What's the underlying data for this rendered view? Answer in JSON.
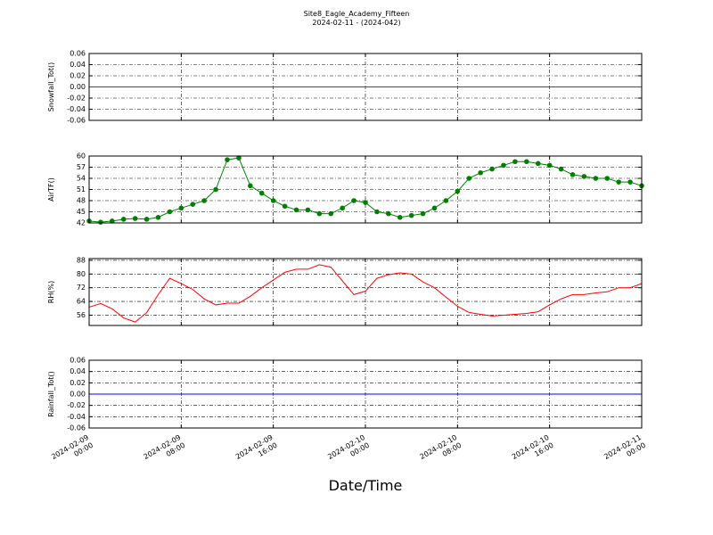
{
  "chart_data": [
    {
      "type": "line",
      "title": "Site8_Eagle_Academy_Fifteen",
      "subtitle": "2024-02-11 - (2024-042)",
      "ylabel": "Snowfall_Tot()",
      "x": [
        "2024-02-09 00:00",
        "2024-02-11 00:00"
      ],
      "values": [
        0,
        0
      ],
      "color": "#ff0000",
      "xlim": [
        "2024-02-09 00:00",
        "2024-02-11 00:00"
      ],
      "ylim": [
        -0.06,
        0.06
      ],
      "yticks": [
        -0.06,
        -0.04,
        -0.02,
        {
          "value": 0,
          "label": "0.00"
        },
        0.02,
        0.04,
        0.06
      ],
      "grid": true
    },
    {
      "type": "line",
      "ylabel": "AirTF()",
      "marker": "o",
      "color": "#008000",
      "x": [
        "2024-02-09 00:00",
        "2024-02-09 01:00",
        "2024-02-09 02:00",
        "2024-02-09 03:00",
        "2024-02-09 04:00",
        "2024-02-09 05:00",
        "2024-02-09 06:00",
        "2024-02-09 07:00",
        "2024-02-09 08:00",
        "2024-02-09 09:00",
        "2024-02-09 10:00",
        "2024-02-09 11:00",
        "2024-02-09 12:00",
        "2024-02-09 13:00",
        "2024-02-09 14:00",
        "2024-02-09 15:00",
        "2024-02-09 16:00",
        "2024-02-09 17:00",
        "2024-02-09 18:00",
        "2024-02-09 19:00",
        "2024-02-09 20:00",
        "2024-02-09 21:00",
        "2024-02-09 22:00",
        "2024-02-09 23:00",
        "2024-02-10 00:00",
        "2024-02-10 01:00",
        "2024-02-10 02:00",
        "2024-02-10 03:00",
        "2024-02-10 04:00",
        "2024-02-10 05:00",
        "2024-02-10 06:00",
        "2024-02-10 07:00",
        "2024-02-10 08:00",
        "2024-02-10 09:00",
        "2024-02-10 10:00",
        "2024-02-10 11:00",
        "2024-02-10 12:00",
        "2024-02-10 13:00",
        "2024-02-10 14:00",
        "2024-02-10 15:00",
        "2024-02-10 16:00",
        "2024-02-10 17:00",
        "2024-02-10 18:00",
        "2024-02-10 19:00",
        "2024-02-10 20:00",
        "2024-02-10 21:00",
        "2024-02-10 22:00",
        "2024-02-10 23:00",
        "2024-02-11 00:00"
      ],
      "values": [
        42.5,
        42.2,
        42.5,
        43,
        43.2,
        43,
        43.5,
        45,
        46,
        47,
        48,
        51,
        59,
        59.5,
        52,
        50,
        48,
        46.5,
        45.5,
        45.5,
        44.5,
        44.5,
        46,
        48,
        47.5,
        45,
        44.5,
        43.5,
        44,
        44.5,
        46,
        48,
        50.5,
        54,
        55.5,
        56.5,
        57.5,
        58.5,
        58.5,
        58,
        57.5,
        56.5,
        55,
        54.5,
        54,
        54,
        53,
        53,
        52
      ],
      "xlim": [
        "2024-02-09 00:00",
        "2024-02-11 00:00"
      ],
      "ylim": [
        42,
        60
      ],
      "yticks": [
        42,
        45,
        48,
        51,
        54,
        57,
        60
      ],
      "grid": true
    },
    {
      "type": "line",
      "ylabel": "RH(%)",
      "color": "#ff0000",
      "x": [
        "2024-02-09 00:00",
        "2024-02-09 01:00",
        "2024-02-09 02:00",
        "2024-02-09 03:00",
        "2024-02-09 04:00",
        "2024-02-09 05:00",
        "2024-02-09 06:00",
        "2024-02-09 07:00",
        "2024-02-09 08:00",
        "2024-02-09 09:00",
        "2024-02-09 10:00",
        "2024-02-09 11:00",
        "2024-02-09 12:00",
        "2024-02-09 13:00",
        "2024-02-09 14:00",
        "2024-02-09 15:00",
        "2024-02-09 16:00",
        "2024-02-09 17:00",
        "2024-02-09 18:00",
        "2024-02-09 19:00",
        "2024-02-09 20:00",
        "2024-02-09 21:00",
        "2024-02-09 22:00",
        "2024-02-09 23:00",
        "2024-02-10 00:00",
        "2024-02-10 01:00",
        "2024-02-10 02:00",
        "2024-02-10 03:00",
        "2024-02-10 04:00",
        "2024-02-10 05:00",
        "2024-02-10 06:00",
        "2024-02-10 07:00",
        "2024-02-10 08:00",
        "2024-02-10 09:00",
        "2024-02-10 10:00",
        "2024-02-10 11:00",
        "2024-02-10 12:00",
        "2024-02-10 13:00",
        "2024-02-10 14:00",
        "2024-02-10 15:00",
        "2024-02-10 16:00",
        "2024-02-10 17:00",
        "2024-02-10 18:00",
        "2024-02-10 19:00",
        "2024-02-10 20:00",
        "2024-02-10 21:00",
        "2024-02-10 22:00",
        "2024-02-10 23:00",
        "2024-02-11 00:00"
      ],
      "values": [
        60.7,
        62.8,
        59.7,
        54.4,
        52,
        57.5,
        68,
        77.5,
        74.4,
        71,
        65.5,
        62,
        63,
        63,
        67,
        72,
        76.5,
        81,
        82.8,
        82.8,
        85.4,
        84,
        76,
        68,
        70,
        77.5,
        79.6,
        80.7,
        80,
        75.4,
        72,
        66.5,
        61.2,
        57.6,
        56.5,
        55.5,
        56,
        56.5,
        57,
        58,
        62,
        65.5,
        68,
        68,
        69,
        69.6,
        72,
        72,
        74.4
      ],
      "xlim": [
        "2024-02-09 00:00",
        "2024-02-11 00:00"
      ],
      "ylim": [
        50,
        89
      ],
      "yticks": [
        56,
        64,
        72,
        80,
        88
      ],
      "grid": true
    },
    {
      "type": "line",
      "ylabel": "Rainfall_Tot()",
      "xlabel": "Date/Time",
      "x": [
        "2024-02-09 00:00",
        "2024-02-11 00:00"
      ],
      "values": [
        0,
        0
      ],
      "color": "#0000ff",
      "xlim": [
        "2024-02-09 00:00",
        "2024-02-11 00:00"
      ],
      "ylim": [
        -0.06,
        0.06
      ],
      "yticks": [
        -0.06,
        -0.04,
        -0.02,
        {
          "value": 0,
          "label": "0.00"
        },
        0.02,
        0.04,
        0.06
      ],
      "xticks": [
        "2024-02-09 00:00",
        "2024-02-09 08:00",
        "2024-02-09 16:00",
        "2024-02-10 00:00",
        "2024-02-10 08:00",
        "2024-02-10 16:00",
        "2024-02-11 00:00"
      ],
      "grid": true
    }
  ]
}
